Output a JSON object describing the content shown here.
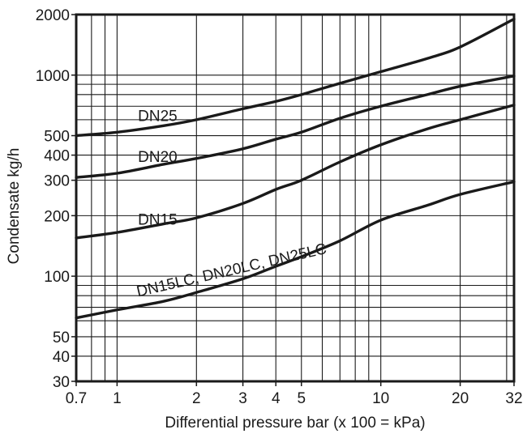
{
  "chart_data": {
    "type": "line",
    "title": "",
    "xlabel": "Differential pressure bar (x 100 = kPa)",
    "ylabel": "Condensate kg/h",
    "x_scale": "log",
    "y_scale": "log",
    "xlim": [
      0.7,
      32
    ],
    "ylim": [
      30,
      2000
    ],
    "grid": true,
    "x_ticks": [
      {
        "value": 0.7,
        "label": "0.7"
      },
      {
        "value": 1,
        "label": "1"
      },
      {
        "value": 2,
        "label": "2"
      },
      {
        "value": 3,
        "label": "3"
      },
      {
        "value": 4,
        "label": "4"
      },
      {
        "value": 5,
        "label": "5"
      },
      {
        "value": 10,
        "label": "10"
      },
      {
        "value": 20,
        "label": "20"
      },
      {
        "value": 32,
        "label": "32"
      }
    ],
    "y_ticks": [
      {
        "value": 30,
        "label": "30"
      },
      {
        "value": 40,
        "label": "40"
      },
      {
        "value": 50,
        "label": "50"
      },
      {
        "value": 100,
        "label": "100"
      },
      {
        "value": 200,
        "label": "200"
      },
      {
        "value": 300,
        "label": "300"
      },
      {
        "value": 400,
        "label": "400"
      },
      {
        "value": 500,
        "label": "500"
      },
      {
        "value": 1000,
        "label": "1000"
      },
      {
        "value": 2000,
        "label": "2000"
      }
    ],
    "x_grid": [
      0.7,
      0.8,
      0.9,
      1,
      2,
      3,
      4,
      5,
      6,
      7,
      8,
      9,
      10,
      20,
      30,
      32
    ],
    "y_grid": [
      30,
      40,
      50,
      60,
      70,
      80,
      90,
      100,
      200,
      300,
      400,
      500,
      600,
      700,
      800,
      900,
      1000,
      2000
    ],
    "series": [
      {
        "name": "DN25",
        "label_at": {
          "x": 1.2,
          "y": 590,
          "angle": 0
        },
        "points": [
          [
            0.7,
            500
          ],
          [
            1,
            520
          ],
          [
            1.5,
            560
          ],
          [
            2,
            600
          ],
          [
            3,
            680
          ],
          [
            4,
            740
          ],
          [
            5,
            800
          ],
          [
            7,
            910
          ],
          [
            10,
            1040
          ],
          [
            15,
            1210
          ],
          [
            20,
            1380
          ],
          [
            32,
            1900
          ]
        ]
      },
      {
        "name": "DN20",
        "label_at": {
          "x": 1.2,
          "y": 370,
          "angle": 0
        },
        "points": [
          [
            0.7,
            310
          ],
          [
            1,
            325
          ],
          [
            1.5,
            360
          ],
          [
            2,
            385
          ],
          [
            3,
            430
          ],
          [
            4,
            480
          ],
          [
            5,
            520
          ],
          [
            7,
            610
          ],
          [
            10,
            700
          ],
          [
            15,
            800
          ],
          [
            20,
            880
          ],
          [
            32,
            990
          ]
        ]
      },
      {
        "name": "DN15",
        "label_at": {
          "x": 1.2,
          "y": 180,
          "angle": 0
        },
        "points": [
          [
            0.7,
            155
          ],
          [
            1,
            165
          ],
          [
            1.5,
            182
          ],
          [
            2,
            195
          ],
          [
            3,
            230
          ],
          [
            4,
            270
          ],
          [
            5,
            300
          ],
          [
            7,
            370
          ],
          [
            10,
            450
          ],
          [
            15,
            540
          ],
          [
            20,
            600
          ],
          [
            32,
            710
          ]
        ]
      },
      {
        "name": "DN15LC, DN20LC, DN25LC",
        "label_at": {
          "x": 1.2,
          "y": 79,
          "angle": -13
        },
        "points": [
          [
            0.7,
            62
          ],
          [
            1,
            68
          ],
          [
            1.5,
            75
          ],
          [
            2,
            83
          ],
          [
            3,
            97
          ],
          [
            4,
            112
          ],
          [
            5,
            125
          ],
          [
            7,
            150
          ],
          [
            10,
            190
          ],
          [
            15,
            225
          ],
          [
            20,
            255
          ],
          [
            32,
            295
          ]
        ]
      }
    ]
  }
}
